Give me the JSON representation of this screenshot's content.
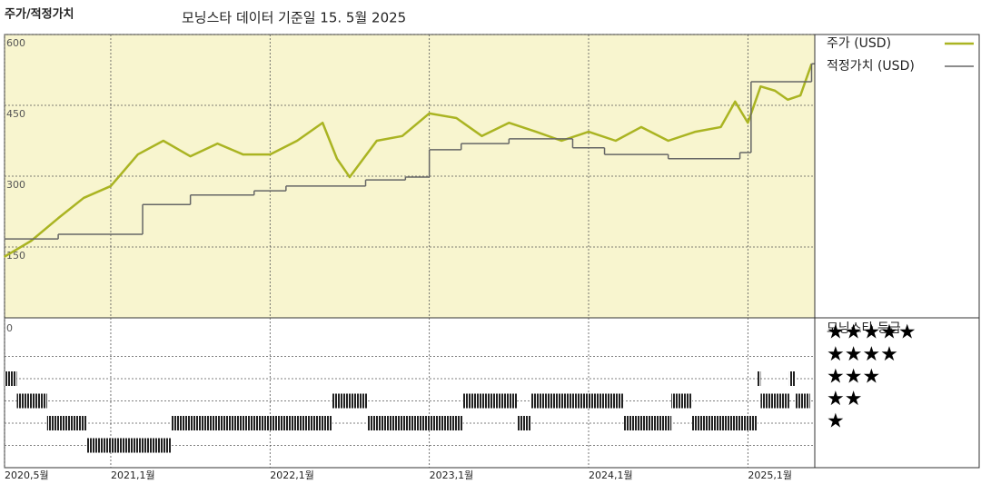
{
  "chart_data": {
    "type": "line",
    "title": "주가/적정가치",
    "subtitle": "모닝스타 데이터 기준일 15. 5월 2025",
    "xlim": [
      2020.333,
      2025.42
    ],
    "xticks": [
      {
        "value": 2020.333,
        "label": "2020,5월"
      },
      {
        "value": 2021.0,
        "label": "2021,1월"
      },
      {
        "value": 2022.0,
        "label": "2022,1월"
      },
      {
        "value": 2023.0,
        "label": "2023,1월"
      },
      {
        "value": 2024.0,
        "label": "2024,1월"
      },
      {
        "value": 2025.0,
        "label": "2025,1월"
      }
    ],
    "ylim": [
      0,
      600
    ],
    "yticks": [
      150,
      300,
      450,
      600
    ],
    "grid": true,
    "series": [
      {
        "name": "주가 (USD)",
        "color": "#aab422",
        "x": [
          2020.33,
          2020.5,
          2020.67,
          2020.83,
          2021.0,
          2021.17,
          2021.33,
          2021.5,
          2021.67,
          2021.83,
          2022.0,
          2022.17,
          2022.33,
          2022.42,
          2022.5,
          2022.67,
          2022.83,
          2023.0,
          2023.17,
          2023.33,
          2023.5,
          2023.67,
          2023.83,
          2024.0,
          2024.17,
          2024.33,
          2024.5,
          2024.67,
          2024.83,
          2024.92,
          2025.0,
          2025.08,
          2025.17,
          2025.25,
          2025.33,
          2025.4
        ],
        "values": [
          129,
          163,
          211,
          254,
          279,
          346,
          375,
          342,
          369,
          346,
          346,
          375,
          413,
          337,
          298,
          375,
          385,
          433,
          423,
          385,
          413,
          394,
          375,
          394,
          375,
          404,
          375,
          394,
          404,
          458,
          413,
          490,
          481,
          462,
          471,
          538
        ]
      },
      {
        "name": "적정가치 (USD)",
        "color": "#666666",
        "step": true,
        "x": [
          2020.33,
          2020.67,
          2021.2,
          2021.5,
          2021.9,
          2022.1,
          2022.6,
          2022.85,
          2023.0,
          2023.2,
          2023.5,
          2023.9,
          2024.1,
          2024.5,
          2024.95,
          2025.02,
          2025.4
        ],
        "values": [
          167,
          177,
          240,
          260,
          269,
          279,
          292,
          298,
          356,
          369,
          379,
          360,
          346,
          337,
          350,
          500,
          538
        ]
      }
    ],
    "rating_title": "모닝스타 등급",
    "rating_axis_label": "0",
    "rating_levels": [
      {
        "value": 5,
        "label": "★★★★★"
      },
      {
        "value": 4,
        "label": "★★★★"
      },
      {
        "value": 3,
        "label": "★★★"
      },
      {
        "value": 2,
        "label": "★★"
      },
      {
        "value": 1,
        "label": "★"
      }
    ],
    "rating_segments": {
      "start": [
        2020.33,
        2020.41,
        2020.6,
        2020.85,
        2021.38,
        2022.39,
        2022.61,
        2023.21,
        2023.55,
        2023.64,
        2024.22,
        2024.52,
        2024.65,
        2025.06,
        2025.08,
        2025.26,
        2025.3
      ],
      "end": [
        2020.41,
        2020.6,
        2020.85,
        2021.38,
        2022.39,
        2022.61,
        2023.21,
        2023.55,
        2023.64,
        2024.22,
        2024.52,
        2024.65,
        2025.06,
        2025.08,
        2025.26,
        2025.3,
        2025.39
      ],
      "stars": [
        4,
        3,
        2,
        1,
        2,
        3,
        2,
        3,
        2,
        3,
        2,
        3,
        2,
        4,
        3,
        4,
        3
      ]
    }
  }
}
